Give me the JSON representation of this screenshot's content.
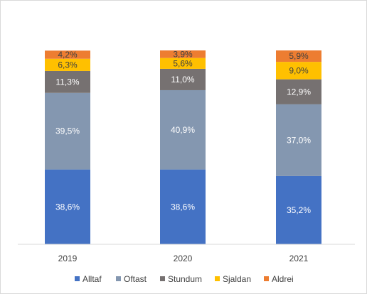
{
  "chart_data": {
    "type": "bar",
    "stacked": true,
    "categories": [
      "2019",
      "2020",
      "2021"
    ],
    "series": [
      {
        "name": "Alltaf",
        "color": "#4472C4",
        "values": [
          38.6,
          38.6,
          35.2
        ],
        "labels": [
          "38,6%",
          "38,6%",
          "35,2%"
        ],
        "label_color": "#FFFFFF"
      },
      {
        "name": "Oftast",
        "color": "#8497B0",
        "values": [
          39.5,
          40.9,
          37.0
        ],
        "labels": [
          "39,5%",
          "40,9%",
          "37,0%"
        ],
        "label_color": "#FFFFFF"
      },
      {
        "name": "Stundum",
        "color": "#767171",
        "values": [
          11.3,
          11.0,
          12.9
        ],
        "labels": [
          "11,3%",
          "11,0%",
          "12,9%"
        ],
        "label_color": "#FFFFFF"
      },
      {
        "name": "Sjaldan",
        "color": "#FFC000",
        "values": [
          6.3,
          5.6,
          9.0
        ],
        "labels": [
          "6,3%",
          "5,6%",
          "9,0%"
        ],
        "label_color": "#404040"
      },
      {
        "name": "Aldrei",
        "color": "#ED7D31",
        "values": [
          4.2,
          3.9,
          5.9
        ],
        "labels": [
          "4,2%",
          "3,9%",
          "5,9%"
        ],
        "label_color": "#404040"
      }
    ],
    "ylim": [
      0,
      100
    ],
    "grid": false,
    "legend_position": "bottom",
    "title": "",
    "xlabel": "",
    "ylabel": ""
  }
}
